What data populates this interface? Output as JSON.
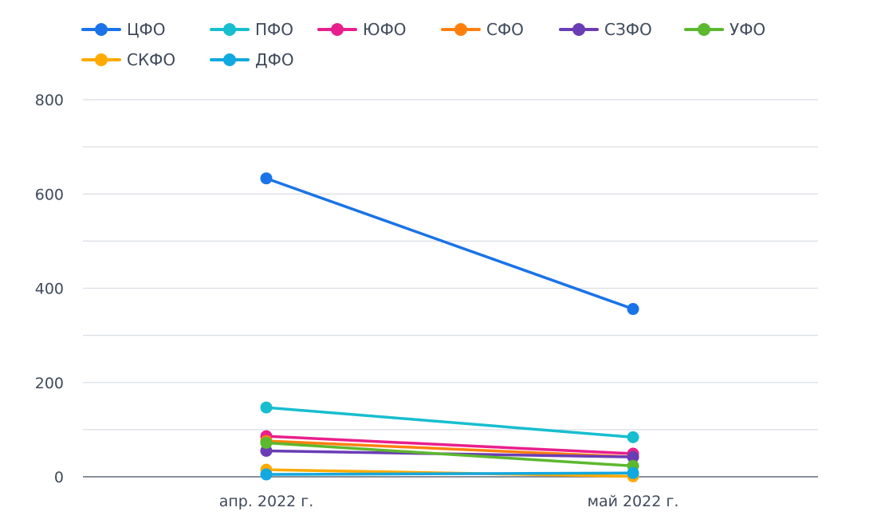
{
  "chart_data": {
    "type": "line",
    "categories": [
      "апр. 2022 г.",
      "май 2022 г."
    ],
    "y_ticks": [
      "0",
      "200",
      "400",
      "600",
      "800"
    ],
    "ylim": [
      0,
      800
    ],
    "grid": true,
    "legend_position": "top-left",
    "series": [
      {
        "name": "ЦФО",
        "color": "#1a73e8",
        "values": [
          633,
          356
        ]
      },
      {
        "name": "ПФО",
        "color": "#17becf",
        "values": [
          147,
          84
        ]
      },
      {
        "name": "ЮФО",
        "color": "#e91e8c",
        "values": [
          86,
          49
        ]
      },
      {
        "name": "СФО",
        "color": "#ff7f0e",
        "values": [
          76,
          42
        ]
      },
      {
        "name": "СЗФО",
        "color": "#6a3db5",
        "values": [
          55,
          42
        ]
      },
      {
        "name": "УФО",
        "color": "#5cb82e",
        "values": [
          72,
          23
        ]
      },
      {
        "name": "СКФО",
        "color": "#ffaa00",
        "values": [
          15,
          1
        ]
      },
      {
        "name": "ДФО",
        "color": "#12a8e0",
        "values": [
          5,
          8
        ]
      }
    ]
  }
}
